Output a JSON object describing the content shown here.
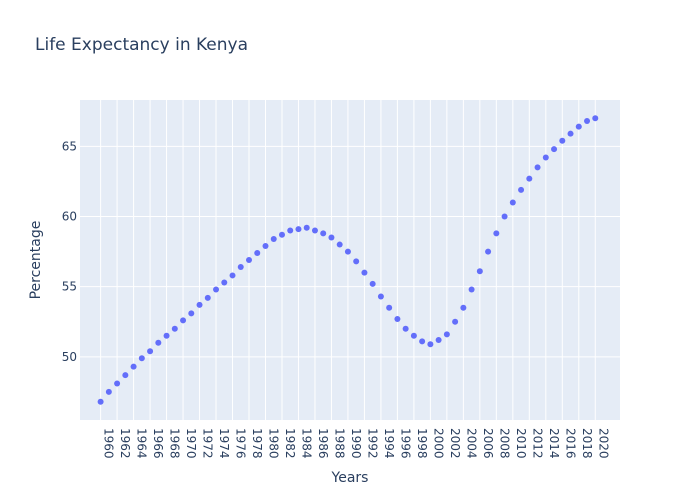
{
  "chart_data": {
    "type": "scatter",
    "title": "Life Expectancy in Kenya",
    "xlabel": "Years",
    "ylabel": "Percentage",
    "x": [
      1960,
      1961,
      1962,
      1963,
      1964,
      1965,
      1966,
      1967,
      1968,
      1969,
      1970,
      1971,
      1972,
      1973,
      1974,
      1975,
      1976,
      1977,
      1978,
      1979,
      1980,
      1981,
      1982,
      1983,
      1984,
      1985,
      1986,
      1987,
      1988,
      1989,
      1990,
      1991,
      1992,
      1993,
      1994,
      1995,
      1996,
      1997,
      1998,
      1999,
      2000,
      2001,
      2002,
      2003,
      2004,
      2005,
      2006,
      2007,
      2008,
      2009,
      2010,
      2011,
      2012,
      2013,
      2014,
      2015,
      2016,
      2017,
      2018,
      2019,
      2020
    ],
    "y": [
      46.8,
      47.5,
      48.1,
      48.7,
      49.3,
      49.9,
      50.4,
      51.0,
      51.5,
      52.0,
      52.6,
      53.1,
      53.7,
      54.2,
      54.8,
      55.3,
      55.8,
      56.4,
      56.9,
      57.4,
      57.9,
      58.4,
      58.7,
      59.0,
      59.1,
      59.2,
      59.0,
      58.8,
      58.5,
      58.0,
      57.5,
      56.8,
      56.0,
      55.2,
      54.3,
      53.5,
      52.7,
      52.0,
      51.5,
      51.1,
      50.9,
      51.2,
      51.6,
      52.5,
      53.5,
      54.8,
      56.1,
      57.5,
      58.8,
      60.0,
      61.0,
      61.9,
      62.7,
      63.5,
      64.2,
      64.8,
      65.4,
      65.9,
      66.4,
      66.8,
      67.0
    ],
    "xticks": [
      "1960",
      "1962",
      "1964",
      "1966",
      "1968",
      "1970",
      "1972",
      "1974",
      "1976",
      "1978",
      "1980",
      "1982",
      "1984",
      "1986",
      "1988",
      "1990",
      "1992",
      "1994",
      "1996",
      "1998",
      "2000",
      "2002",
      "2004",
      "2006",
      "2008",
      "2010",
      "2012",
      "2014",
      "2016",
      "2018",
      "2020"
    ],
    "yticks": [
      "50",
      "55",
      "60",
      "65"
    ],
    "xlim": [
      1957.5,
      2023
    ],
    "ylim": [
      45.5,
      68.3
    ],
    "grid": true,
    "colors": {
      "marker": "#636efa",
      "plot_bg": "#e5ecf6",
      "text": "#2a3f5f"
    }
  }
}
